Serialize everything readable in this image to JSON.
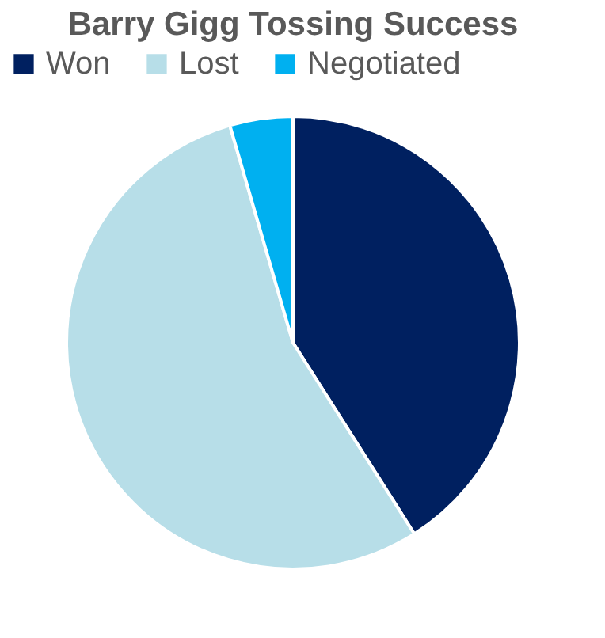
{
  "chart_data": {
    "type": "pie",
    "title": "Barry Gigg Tossing Success",
    "categories": [
      "Won",
      "Lost",
      "Negotiated"
    ],
    "values": [
      41,
      54.5,
      4.5
    ],
    "colors": [
      "#002060",
      "#b7dee8",
      "#00b0f0"
    ],
    "legend": "top"
  }
}
